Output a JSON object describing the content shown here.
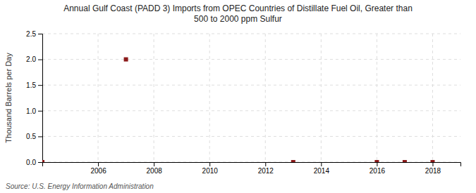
{
  "chart_data": {
    "type": "scatter",
    "title": "Annual Gulf Coast (PADD 3) Imports from OPEC Countries of Distillate Fuel Oil, Greater than\n500 to 2000 ppm Sulfur",
    "ylabel": "Thousand Barrels per Day",
    "source": "Source: U.S. Energy Information Administration",
    "x": [
      2004,
      2007,
      2013,
      2016,
      2017,
      2018
    ],
    "values": [
      0.0,
      2.0,
      0.0,
      0.0,
      0.0,
      0.0
    ],
    "color": "#8b1a1a",
    "marker": "square",
    "xlim": [
      2004.0,
      2019.0
    ],
    "xticks": [
      2006,
      2008,
      2010,
      2012,
      2014,
      2016,
      2018
    ],
    "ylim": [
      0.0,
      2.5
    ],
    "yticks": [
      {
        "value": 0.0,
        "label": "0.0"
      },
      0.5,
      {
        "value": 1.0,
        "label": "1.0"
      },
      1.5,
      {
        "value": 2.0,
        "label": "2.0"
      },
      2.5
    ],
    "grid": true
  }
}
